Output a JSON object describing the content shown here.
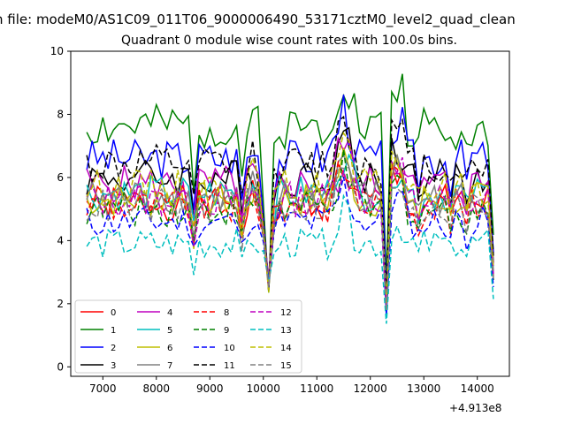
{
  "figure": {
    "suptitle": "n file: modeM0/AS1C09_011T06_9000006490_53171cztM0_level2_quad_clean",
    "offset_text": "+4.913e8"
  },
  "chart_data": {
    "type": "line",
    "title": "Quadrant 0 module wise count rates with 100.0s bins.",
    "xlabel": "",
    "ylabel": "",
    "xlim": [
      6400,
      14600
    ],
    "ylim": [
      -0.3,
      10
    ],
    "xticks": [
      7000,
      8000,
      9000,
      10000,
      11000,
      12000,
      13000,
      14000
    ],
    "yticks": [
      0,
      2,
      4,
      6,
      8,
      10
    ],
    "grid": false,
    "legend_position": "lower-left",
    "legend_columns": 4,
    "x": {
      "start": 6700,
      "step": 100,
      "count": 77
    },
    "features": {
      "dip_10100": [
        4.2,
        2.6
      ],
      "spike_8700": 0.78,
      "spike_9600": 0.8,
      "bump_11500": 1.24,
      "drop_12300": 0.35,
      "spike_12500": 1.15,
      "end_14300": [
        0.55,
        0.05
      ]
    },
    "series": [
      {
        "name": "0",
        "color": "#ff0000",
        "dash": false,
        "level": 5.2
      },
      {
        "name": "1",
        "color": "#008000",
        "dash": false,
        "level": 7.6
      },
      {
        "name": "2",
        "color": "#0000ff",
        "dash": false,
        "level": 6.6
      },
      {
        "name": "3",
        "color": "#000000",
        "dash": false,
        "level": 6.0
      },
      {
        "name": "4",
        "color": "#bf00bf",
        "dash": false,
        "level": 5.8
      },
      {
        "name": "5",
        "color": "#00bfbf",
        "dash": false,
        "level": 5.5
      },
      {
        "name": "6",
        "color": "#bfbf00",
        "dash": false,
        "level": 5.3
      },
      {
        "name": "7",
        "color": "#808080",
        "dash": false,
        "level": 5.4
      },
      {
        "name": "8",
        "color": "#ff0000",
        "dash": true,
        "level": 5.1
      },
      {
        "name": "9",
        "color": "#008000",
        "dash": true,
        "level": 5.0
      },
      {
        "name": "10",
        "color": "#0000ff",
        "dash": true,
        "level": 4.6
      },
      {
        "name": "11",
        "color": "#000000",
        "dash": true,
        "level": 6.4
      },
      {
        "name": "12",
        "color": "#bf00bf",
        "dash": true,
        "level": 5.3
      },
      {
        "name": "13",
        "color": "#00bfbf",
        "dash": true,
        "level": 3.9
      },
      {
        "name": "14",
        "color": "#bfbf00",
        "dash": true,
        "level": 5.7
      },
      {
        "name": "15",
        "color": "#808080",
        "dash": true,
        "level": 5.1
      }
    ]
  }
}
